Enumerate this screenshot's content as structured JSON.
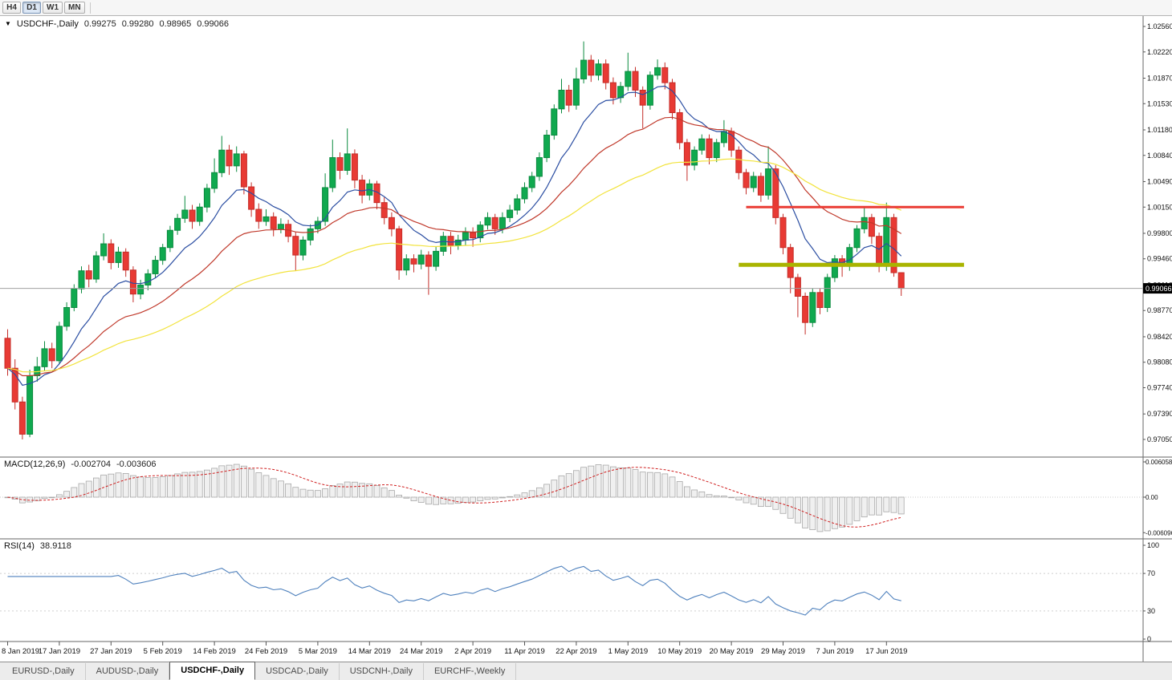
{
  "window": {
    "toolbar_timeframes": [
      {
        "label": "H4",
        "active": false
      },
      {
        "label": "D1",
        "active": true
      },
      {
        "label": "W1",
        "active": false
      },
      {
        "label": "MN",
        "active": false
      }
    ]
  },
  "chart": {
    "symbol": "USDCHF-,Daily",
    "ohlc": {
      "open": "0.99275",
      "high": "0.99280",
      "low": "0.98965",
      "close": "0.99066"
    },
    "current_price": "0.99066",
    "price_axis": [
      "1.02560",
      "1.02220",
      "1.01870",
      "1.01530",
      "1.01180",
      "1.00840",
      "1.00490",
      "1.00150",
      "0.99800",
      "0.99460",
      "0.99110",
      "0.98770",
      "0.98420",
      "0.98080",
      "0.97740",
      "0.97390",
      "0.97050"
    ],
    "date_axis": [
      "8 Jan 2019",
      "17 Jan 2019",
      "27 Jan 2019",
      "5 Feb 2019",
      "14 Feb 2019",
      "24 Feb 2019",
      "5 Mar 2019",
      "14 Mar 2019",
      "24 Mar 2019",
      "2 Apr 2019",
      "11 Apr 2019",
      "22 Apr 2019",
      "1 May 2019",
      "10 May 2019",
      "20 May 2019",
      "29 May 2019",
      "7 Jun 2019",
      "17 Jun 2019"
    ],
    "tick_every": 7,
    "chart_type": "candlestick",
    "candles": [
      [
        0.984,
        0.9852,
        0.979,
        0.98
      ],
      [
        0.98,
        0.9812,
        0.9745,
        0.9755
      ],
      [
        0.9755,
        0.9762,
        0.9705,
        0.9712
      ],
      [
        0.9712,
        0.9798,
        0.9708,
        0.979
      ],
      [
        0.979,
        0.9815,
        0.9782,
        0.9802
      ],
      [
        0.9802,
        0.9836,
        0.9796,
        0.9826
      ],
      [
        0.9826,
        0.9834,
        0.98,
        0.981
      ],
      [
        0.981,
        0.9862,
        0.9806,
        0.9856
      ],
      [
        0.9856,
        0.9888,
        0.985,
        0.9881
      ],
      [
        0.9881,
        0.9912,
        0.9876,
        0.9906
      ],
      [
        0.9906,
        0.9936,
        0.99,
        0.993
      ],
      [
        0.993,
        0.9938,
        0.9908,
        0.9919
      ],
      [
        0.9919,
        0.9956,
        0.9914,
        0.995
      ],
      [
        0.995,
        0.998,
        0.9944,
        0.9966
      ],
      [
        0.9966,
        0.9972,
        0.9932,
        0.9941
      ],
      [
        0.9941,
        0.9962,
        0.9934,
        0.9955
      ],
      [
        0.9955,
        0.996,
        0.9922,
        0.9931
      ],
      [
        0.9931,
        0.9936,
        0.9888,
        0.9899
      ],
      [
        0.9899,
        0.9918,
        0.9892,
        0.9911
      ],
      [
        0.9911,
        0.9932,
        0.9904,
        0.9926
      ],
      [
        0.9926,
        0.995,
        0.992,
        0.9944
      ],
      [
        0.9944,
        0.9966,
        0.9938,
        0.9961
      ],
      [
        0.9961,
        0.999,
        0.9955,
        0.9984
      ],
      [
        0.9984,
        1.0006,
        0.9978,
        1.0
      ],
      [
        1.0,
        1.003,
        0.9994,
        1.0011
      ],
      [
        1.0011,
        1.0018,
        0.9986,
        0.9996
      ],
      [
        0.9996,
        1.002,
        0.999,
        1.0015
      ],
      [
        1.0015,
        1.0046,
        1.0008,
        1.004
      ],
      [
        1.004,
        1.008,
        1.0034,
        1.0061
      ],
      [
        1.0061,
        1.011,
        1.0055,
        1.0091
      ],
      [
        1.0091,
        1.0098,
        1.0058,
        1.007
      ],
      [
        1.007,
        1.0096,
        1.0062,
        1.0086
      ],
      [
        1.0086,
        1.009,
        1.0032,
        1.0042
      ],
      [
        1.0042,
        1.0048,
        1.0002,
        1.0012
      ],
      [
        1.0012,
        1.002,
        0.9986,
        0.9996
      ],
      [
        0.9996,
        1.0012,
        0.999,
        1.0002
      ],
      [
        1.0002,
        1.0008,
        0.9976,
        0.9986
      ],
      [
        0.9986,
        1.0,
        0.998,
        0.9992
      ],
      [
        0.9992,
        0.9998,
        0.9968,
        0.9976
      ],
      [
        0.9976,
        0.9982,
        0.993,
        0.9951
      ],
      [
        0.9951,
        0.9976,
        0.9944,
        0.9971
      ],
      [
        0.9971,
        0.9992,
        0.9964,
        0.9986
      ],
      [
        0.9986,
        1.0002,
        0.998,
        0.9996
      ],
      [
        0.9996,
        1.006,
        0.999,
        1.0041
      ],
      [
        1.0041,
        1.0105,
        1.0035,
        1.0081
      ],
      [
        1.0081,
        1.0088,
        1.0052,
        1.0064
      ],
      [
        1.0064,
        1.012,
        1.0058,
        1.0086
      ],
      [
        1.0086,
        1.0092,
        1.004,
        1.0051
      ],
      [
        1.0051,
        1.0058,
        1.002,
        1.0031
      ],
      [
        1.0031,
        1.0052,
        1.0024,
        1.0046
      ],
      [
        1.0046,
        1.005,
        1.0012,
        1.0021
      ],
      [
        1.0021,
        1.0028,
        0.9992,
        1.0001
      ],
      [
        1.0001,
        1.0008,
        0.9976,
        0.9986
      ],
      [
        0.9986,
        0.999,
        0.9918,
        0.9931
      ],
      [
        0.9931,
        0.9952,
        0.9924,
        0.9946
      ],
      [
        0.9946,
        0.9952,
        0.9928,
        0.9939
      ],
      [
        0.9939,
        0.9958,
        0.9932,
        0.9951
      ],
      [
        0.9951,
        0.9956,
        0.9898,
        0.9936
      ],
      [
        0.9936,
        0.9962,
        0.993,
        0.9956
      ],
      [
        0.9956,
        0.9982,
        0.995,
        0.9976
      ],
      [
        0.9976,
        0.9982,
        0.9952,
        0.9964
      ],
      [
        0.9964,
        0.9978,
        0.9958,
        0.9971
      ],
      [
        0.9971,
        0.9988,
        0.9964,
        0.9981
      ],
      [
        0.9981,
        0.9988,
        0.9962,
        0.9974
      ],
      [
        0.9974,
        0.9996,
        0.9968,
        0.9991
      ],
      [
        0.9991,
        1.0008,
        0.9985,
        1.0001
      ],
      [
        1.0001,
        1.0006,
        0.9978,
        0.9986
      ],
      [
        0.9986,
        1.0008,
        0.998,
        1.0001
      ],
      [
        1.0001,
        1.0018,
        0.9995,
        1.0011
      ],
      [
        1.0011,
        1.0032,
        1.0005,
        1.0026
      ],
      [
        1.0026,
        1.0048,
        1.002,
        1.0041
      ],
      [
        1.0041,
        1.0062,
        1.0035,
        1.0056
      ],
      [
        1.0056,
        1.0088,
        1.005,
        1.0081
      ],
      [
        1.0081,
        1.0118,
        1.0075,
        1.0111
      ],
      [
        1.0111,
        1.0152,
        1.0105,
        1.0146
      ],
      [
        1.0146,
        1.0186,
        1.014,
        1.0171
      ],
      [
        1.0171,
        1.0178,
        1.0142,
        1.0151
      ],
      [
        1.0151,
        1.0201,
        1.0145,
        1.0186
      ],
      [
        1.0186,
        1.0236,
        1.018,
        1.0211
      ],
      [
        1.0211,
        1.0218,
        1.0182,
        1.0191
      ],
      [
        1.0191,
        1.0212,
        1.0184,
        1.0206
      ],
      [
        1.0206,
        1.0212,
        1.0172,
        1.0181
      ],
      [
        1.0181,
        1.0188,
        1.0152,
        1.0161
      ],
      [
        1.0161,
        1.0182,
        1.0154,
        1.0176
      ],
      [
        1.0176,
        1.0221,
        1.017,
        1.0196
      ],
      [
        1.0196,
        1.0202,
        1.0162,
        1.0171
      ],
      [
        1.0171,
        1.0176,
        1.012,
        1.0151
      ],
      [
        1.0151,
        1.0196,
        1.0145,
        1.0191
      ],
      [
        1.0191,
        1.0212,
        1.0185,
        1.0201
      ],
      [
        1.0201,
        1.0208,
        1.0172,
        1.0181
      ],
      [
        1.0181,
        1.0186,
        1.0132,
        1.0141
      ],
      [
        1.0141,
        1.0146,
        1.0092,
        1.0101
      ],
      [
        1.0101,
        1.0106,
        1.005,
        1.0071
      ],
      [
        1.0071,
        1.0096,
        1.0064,
        1.0091
      ],
      [
        1.0091,
        1.0112,
        1.0085,
        1.0106
      ],
      [
        1.0106,
        1.0112,
        1.0072,
        1.0081
      ],
      [
        1.0081,
        1.0106,
        1.0075,
        1.0101
      ],
      [
        1.0101,
        1.0131,
        1.0095,
        1.0116
      ],
      [
        1.0116,
        1.0121,
        1.0082,
        1.0091
      ],
      [
        1.0091,
        1.0096,
        1.0052,
        1.0061
      ],
      [
        1.0061,
        1.0066,
        1.0032,
        1.0041
      ],
      [
        1.0041,
        1.0062,
        1.0035,
        1.0056
      ],
      [
        1.0056,
        1.0061,
        1.0022,
        1.0031
      ],
      [
        1.0031,
        1.0096,
        1.0025,
        1.0066
      ],
      [
        1.0066,
        1.0071,
        0.9992,
        1.0001
      ],
      [
        1.0001,
        1.0006,
        0.9952,
        0.9961
      ],
      [
        0.9961,
        0.9966,
        0.99,
        0.9921
      ],
      [
        0.9921,
        0.9926,
        0.9868,
        0.9896
      ],
      [
        0.9896,
        0.9901,
        0.9845,
        0.9861
      ],
      [
        0.9861,
        0.9906,
        0.9855,
        0.9901
      ],
      [
        0.9901,
        0.9906,
        0.9872,
        0.9881
      ],
      [
        0.9881,
        0.9926,
        0.9875,
        0.9921
      ],
      [
        0.9921,
        0.9951,
        0.9915,
        0.9946
      ],
      [
        0.9946,
        0.9951,
        0.9922,
        0.9936
      ],
      [
        0.9936,
        0.9966,
        0.993,
        0.9961
      ],
      [
        0.9961,
        0.9991,
        0.9955,
        0.9986
      ],
      [
        0.9986,
        1.0016,
        0.998,
        1.0001
      ],
      [
        1.0001,
        1.0006,
        0.9966,
        0.9976
      ],
      [
        0.9976,
        0.9981,
        0.9928,
        0.9936
      ],
      [
        0.9936,
        1.0021,
        0.993,
        1.0001
      ],
      [
        1.0001,
        1.0006,
        0.9922,
        0.99275
      ],
      [
        0.99275,
        0.9928,
        0.98965,
        0.99066
      ]
    ],
    "moving_averages": [
      {
        "name": "fast-ma",
        "period": 10,
        "color": "#2b4ea2"
      },
      {
        "name": "medium-ma",
        "period": 25,
        "color": "#c0392b"
      },
      {
        "name": "slow-ma",
        "period": 55,
        "color": "#f2e33c"
      }
    ],
    "trendlines": [
      {
        "name": "resistance-line",
        "price": 1.0015,
        "from": 100,
        "to": 129.5,
        "color": "#ea3b34",
        "width": 3
      },
      {
        "name": "support-line",
        "price": 0.9938,
        "from": 99,
        "to": 129.5,
        "color": "#a9b400",
        "width": 5
      }
    ],
    "colors": {
      "up": "#10a94f",
      "up_border": "#0b8a3f",
      "down": "#e83a34",
      "down_border": "#c42d28",
      "price_line": "#a0a0a0",
      "price_tag_bg": "#000000",
      "price_tag_text": "#ffffff"
    }
  },
  "macd": {
    "label": "MACD(12,26,9)",
    "main_value": "-0.002704",
    "signal_value": "-0.003606",
    "fast": 12,
    "slow": 26,
    "signal": 9,
    "axis": [
      "0.0060583",
      "0.00",
      "-0.0060966"
    ],
    "scale_max": 0.0060583,
    "histogram_fill": "#f0f0f0",
    "histogram_border": "#a8a8a8",
    "signal_color": "#d02020"
  },
  "rsi": {
    "label": "RSI(14)",
    "value": "38.9118",
    "period": 14,
    "axis": [
      "100",
      "70",
      "30",
      "0"
    ],
    "levels": [
      70,
      30
    ],
    "line_color": "#4f81bd"
  },
  "tabs": {
    "items": [
      {
        "label": "EURUSD-,Daily",
        "active": false
      },
      {
        "label": "AUDUSD-,Daily",
        "active": false
      },
      {
        "label": "USDCHF-,Daily",
        "active": true
      },
      {
        "label": "USDCAD-,Daily",
        "active": false
      },
      {
        "label": "USDCNH-,Daily",
        "active": false
      },
      {
        "label": "EURCHF-,Weekly",
        "active": false
      }
    ]
  }
}
